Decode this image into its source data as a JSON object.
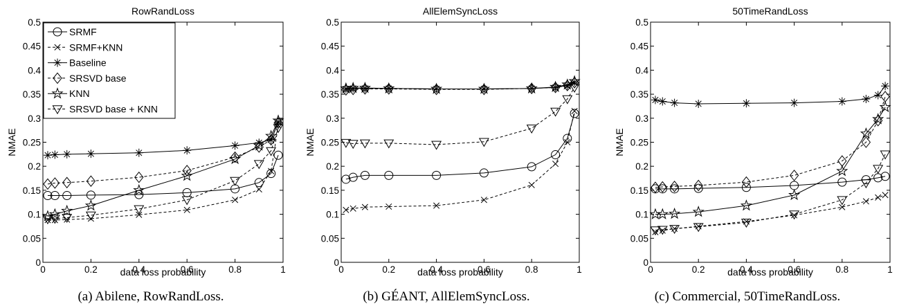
{
  "figure": {
    "captions": [
      "(a)  Abilene, RowRandLoss.",
      "(b)  GÉANT, AllElemSyncLoss.",
      "(c)  Commercial, 50TimeRandLoss."
    ]
  },
  "chart_data": [
    {
      "type": "line",
      "title": "RowRandLoss",
      "xlabel": "data loss probability",
      "ylabel": "NMAE",
      "xlim": [
        0,
        1
      ],
      "ylim": [
        0,
        0.5
      ],
      "xticks": [
        0,
        0.2,
        0.4,
        0.6,
        0.8,
        1
      ],
      "xtick_labels": [
        "0",
        "0.2",
        "0.4",
        "0.6",
        "0.8",
        "1"
      ],
      "yticks": [
        0,
        0.05,
        0.1,
        0.15,
        0.2,
        0.25,
        0.3,
        0.35,
        0.4,
        0.45,
        0.5
      ],
      "ytick_labels": [
        "0",
        "0.05",
        "0.1",
        "0.15",
        "0.2",
        "0.25",
        "0.3",
        "0.35",
        "0.4",
        "0.45",
        "0.5"
      ],
      "grid": false,
      "legend": "top-left",
      "x": [
        0.02,
        0.05,
        0.1,
        0.2,
        0.4,
        0.6,
        0.8,
        0.9,
        0.95,
        0.98
      ],
      "series": [
        {
          "name": "SRMF",
          "marker": "circle",
          "dash": "solid",
          "values": [
            0.139,
            0.139,
            0.139,
            0.14,
            0.141,
            0.145,
            0.153,
            0.166,
            0.185,
            0.223
          ]
        },
        {
          "name": "SRMF+KNN",
          "marker": "x",
          "dash": "dashed",
          "values": [
            0.088,
            0.088,
            0.089,
            0.091,
            0.099,
            0.109,
            0.13,
            0.152,
            0.19,
            0.285
          ]
        },
        {
          "name": "Baseline",
          "marker": "asterisk",
          "dash": "solid",
          "values": [
            0.223,
            0.224,
            0.225,
            0.226,
            0.228,
            0.233,
            0.243,
            0.249,
            0.255,
            0.292
          ]
        },
        {
          "name": "SRSVD base",
          "marker": "diamond",
          "dash": "dashed",
          "values": [
            0.163,
            0.165,
            0.166,
            0.169,
            0.177,
            0.191,
            0.219,
            0.24,
            0.255,
            0.29
          ]
        },
        {
          "name": "KNN",
          "marker": "star",
          "dash": "solid",
          "values": [
            0.096,
            0.1,
            0.107,
            0.118,
            0.15,
            0.18,
            0.215,
            0.243,
            0.263,
            0.295
          ]
        },
        {
          "name": "SRSVD base + KNN",
          "marker": "triangle-down",
          "dash": "dashed",
          "values": [
            0.09,
            0.091,
            0.093,
            0.098,
            0.111,
            0.13,
            0.17,
            0.205,
            0.232,
            0.28
          ]
        }
      ]
    },
    {
      "type": "line",
      "title": "AllElemSyncLoss",
      "xlabel": "data loss probability",
      "ylabel": "NMAE",
      "xlim": [
        0,
        1
      ],
      "ylim": [
        0,
        0.5
      ],
      "xticks": [
        0,
        0.2,
        0.4,
        0.6,
        0.8,
        1
      ],
      "xtick_labels": [
        "0",
        "0.2",
        "0.4",
        "0.6",
        "0.8",
        "1"
      ],
      "yticks": [
        0,
        0.05,
        0.1,
        0.15,
        0.2,
        0.25,
        0.3,
        0.35,
        0.4,
        0.45,
        0.5
      ],
      "ytick_labels": [
        "0",
        "0.05",
        "0.1",
        "0.15",
        "0.2",
        "0.25",
        "0.3",
        "0.35",
        "0.4",
        "0.45",
        "0.5"
      ],
      "grid": false,
      "legend": "none",
      "x": [
        0.02,
        0.05,
        0.1,
        0.2,
        0.4,
        0.6,
        0.8,
        0.9,
        0.95,
        0.98
      ],
      "series": [
        {
          "name": "SRMF",
          "marker": "circle",
          "dash": "solid",
          "values": [
            0.173,
            0.177,
            0.181,
            0.181,
            0.181,
            0.186,
            0.199,
            0.224,
            0.258,
            0.31
          ]
        },
        {
          "name": "SRMF+KNN",
          "marker": "x",
          "dash": "dashed",
          "values": [
            0.109,
            0.112,
            0.115,
            0.116,
            0.118,
            0.13,
            0.161,
            0.205,
            0.25,
            0.315
          ]
        },
        {
          "name": "Baseline",
          "marker": "asterisk",
          "dash": "solid",
          "values": [
            0.361,
            0.362,
            0.362,
            0.362,
            0.361,
            0.361,
            0.362,
            0.364,
            0.368,
            0.375
          ]
        },
        {
          "name": "SRSVD base",
          "marker": "diamond",
          "dash": "dashed",
          "values": [
            0.359,
            0.36,
            0.361,
            0.361,
            0.36,
            0.36,
            0.362,
            0.364,
            0.368,
            0.374
          ]
        },
        {
          "name": "KNN",
          "marker": "star",
          "dash": "solid",
          "values": [
            0.362,
            0.363,
            0.363,
            0.362,
            0.361,
            0.361,
            0.362,
            0.365,
            0.37,
            0.377
          ]
        },
        {
          "name": "SRSVD base + KNN",
          "marker": "triangle-down",
          "dash": "dashed",
          "values": [
            0.249,
            0.247,
            0.248,
            0.248,
            0.245,
            0.251,
            0.279,
            0.314,
            0.34,
            0.364
          ]
        }
      ]
    },
    {
      "type": "line",
      "title": "50TimeRandLoss",
      "xlabel": "data loss probability",
      "ylabel": "NMAE",
      "xlim": [
        0,
        1
      ],
      "ylim": [
        0,
        0.5
      ],
      "xticks": [
        0,
        0.2,
        0.4,
        0.6,
        0.8,
        1
      ],
      "xtick_labels": [
        "0",
        "0.2",
        "0.4",
        "0.6",
        "0.8",
        "1"
      ],
      "yticks": [
        0,
        0.05,
        0.1,
        0.15,
        0.2,
        0.25,
        0.3,
        0.35,
        0.4,
        0.45,
        0.5
      ],
      "ytick_labels": [
        "0",
        "0.05",
        "0.1",
        "0.15",
        "0.2",
        "0.25",
        "0.3",
        "0.35",
        "0.4",
        "0.45",
        "0.5"
      ],
      "grid": false,
      "legend": "none",
      "x": [
        0.02,
        0.05,
        0.1,
        0.2,
        0.4,
        0.6,
        0.8,
        0.9,
        0.95,
        0.98
      ],
      "series": [
        {
          "name": "SRMF",
          "marker": "circle",
          "dash": "solid",
          "values": [
            0.153,
            0.153,
            0.153,
            0.154,
            0.156,
            0.16,
            0.167,
            0.172,
            0.176,
            0.179
          ]
        },
        {
          "name": "SRMF+KNN",
          "marker": "x",
          "dash": "dashed",
          "values": [
            0.063,
            0.066,
            0.07,
            0.075,
            0.085,
            0.098,
            0.115,
            0.127,
            0.135,
            0.14
          ]
        },
        {
          "name": "Baseline",
          "marker": "asterisk",
          "dash": "solid",
          "values": [
            0.338,
            0.335,
            0.332,
            0.33,
            0.331,
            0.332,
            0.335,
            0.34,
            0.348,
            0.367
          ]
        },
        {
          "name": "SRSVD base",
          "marker": "diamond",
          "dash": "dashed",
          "values": [
            0.156,
            0.157,
            0.158,
            0.16,
            0.167,
            0.181,
            0.211,
            0.25,
            0.295,
            0.345
          ]
        },
        {
          "name": "KNN",
          "marker": "star",
          "dash": "solid",
          "values": [
            0.1,
            0.1,
            0.101,
            0.105,
            0.118,
            0.14,
            0.19,
            0.268,
            0.298,
            0.323
          ]
        },
        {
          "name": "SRSVD base + KNN",
          "marker": "triangle-down",
          "dash": "dashed",
          "values": [
            0.067,
            0.068,
            0.07,
            0.074,
            0.083,
            0.1,
            0.13,
            0.165,
            0.195,
            0.225
          ]
        }
      ]
    }
  ]
}
